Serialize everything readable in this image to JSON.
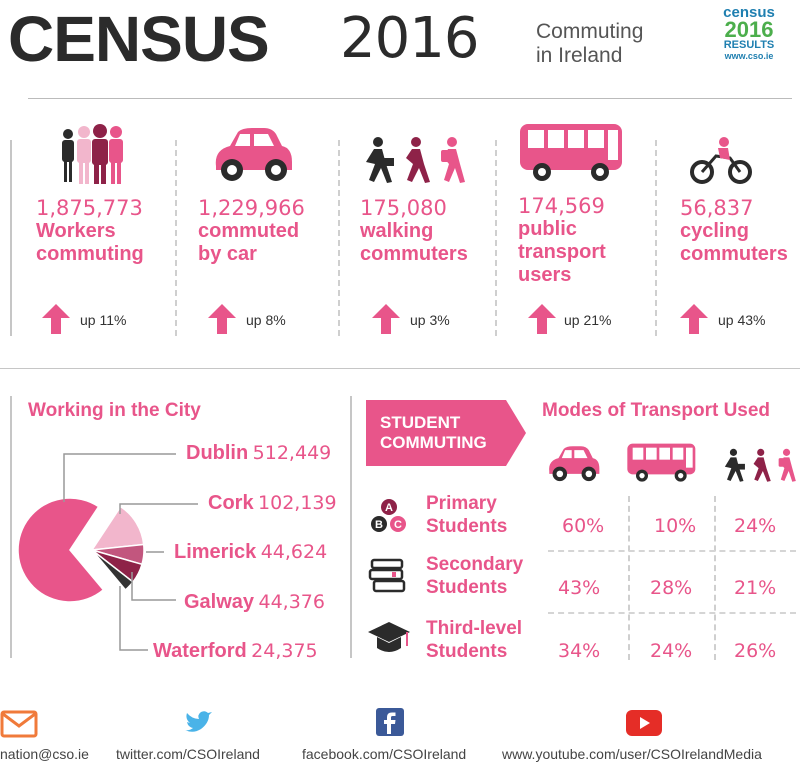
{
  "header": {
    "title": "CENSUS",
    "year": "2016",
    "subtitle_line1": "Commuting",
    "subtitle_line2": "in Ireland",
    "logo_line1": "census",
    "logo_line2": "2016",
    "logo_line3": "RESULTS",
    "logo_line4": "www.cso.ie"
  },
  "stats": [
    {
      "icon": "people-icon",
      "number": "1,875,773",
      "label1": "Workers",
      "label2": "commuting",
      "label3": "",
      "change": "up 11%"
    },
    {
      "icon": "car-icon",
      "number": "1,229,966",
      "label1": "commuted",
      "label2": "by car",
      "label3": "",
      "change": "up 8%"
    },
    {
      "icon": "walking-icon",
      "number": "175,080",
      "label1": "walking",
      "label2": "commuters",
      "label3": "",
      "change": "up 3%"
    },
    {
      "icon": "bus-icon",
      "number": "174,569",
      "label1": "public",
      "label2": "transport",
      "label3": "users",
      "change": "up 21%"
    },
    {
      "icon": "bicycle-icon",
      "number": "56,837",
      "label1": "cycling",
      "label2": "commuters",
      "label3": "",
      "change": "up 43%"
    }
  ],
  "city": {
    "title": "Working in the City",
    "items": [
      {
        "name": "Dublin",
        "value": "512,449",
        "raw": 512449,
        "color": "#e8558a"
      },
      {
        "name": "Cork",
        "value": "102,139",
        "raw": 102139,
        "color": "#f2b6cc"
      },
      {
        "name": "Limerick",
        "value": "44,624",
        "raw": 44624,
        "color": "#c2567e"
      },
      {
        "name": "Galway",
        "value": "44,376",
        "raw": 44376,
        "color": "#8e2248"
      },
      {
        "name": "Waterford",
        "value": "24,375",
        "raw": 24375,
        "color": "#333333"
      }
    ]
  },
  "student": {
    "banner_line1": "STUDENT",
    "banner_line2": "COMMUTING",
    "modes_title": "Modes of Transport Used",
    "rows": [
      {
        "icon": "abc-blocks-icon",
        "label1": "Primary",
        "label2": "Students",
        "car": "60%",
        "bus": "10%",
        "walk": "24%"
      },
      {
        "icon": "books-icon",
        "label1": "Secondary",
        "label2": "Students",
        "car": "43%",
        "bus": "28%",
        "walk": "21%"
      },
      {
        "icon": "graduation-cap-icon",
        "label1": "Third-level",
        "label2": "Students",
        "car": "34%",
        "bus": "24%",
        "walk": "26%"
      }
    ]
  },
  "footer": {
    "email": "nation@cso.ie",
    "twitter": "twitter.com/CSOIreland",
    "facebook": "facebook.com/CSOIreland",
    "youtube": "www.youtube.com/user/CSOIrelandMedia"
  },
  "colors": {
    "pink": "#e8558a",
    "dark": "#2b2b2b"
  }
}
